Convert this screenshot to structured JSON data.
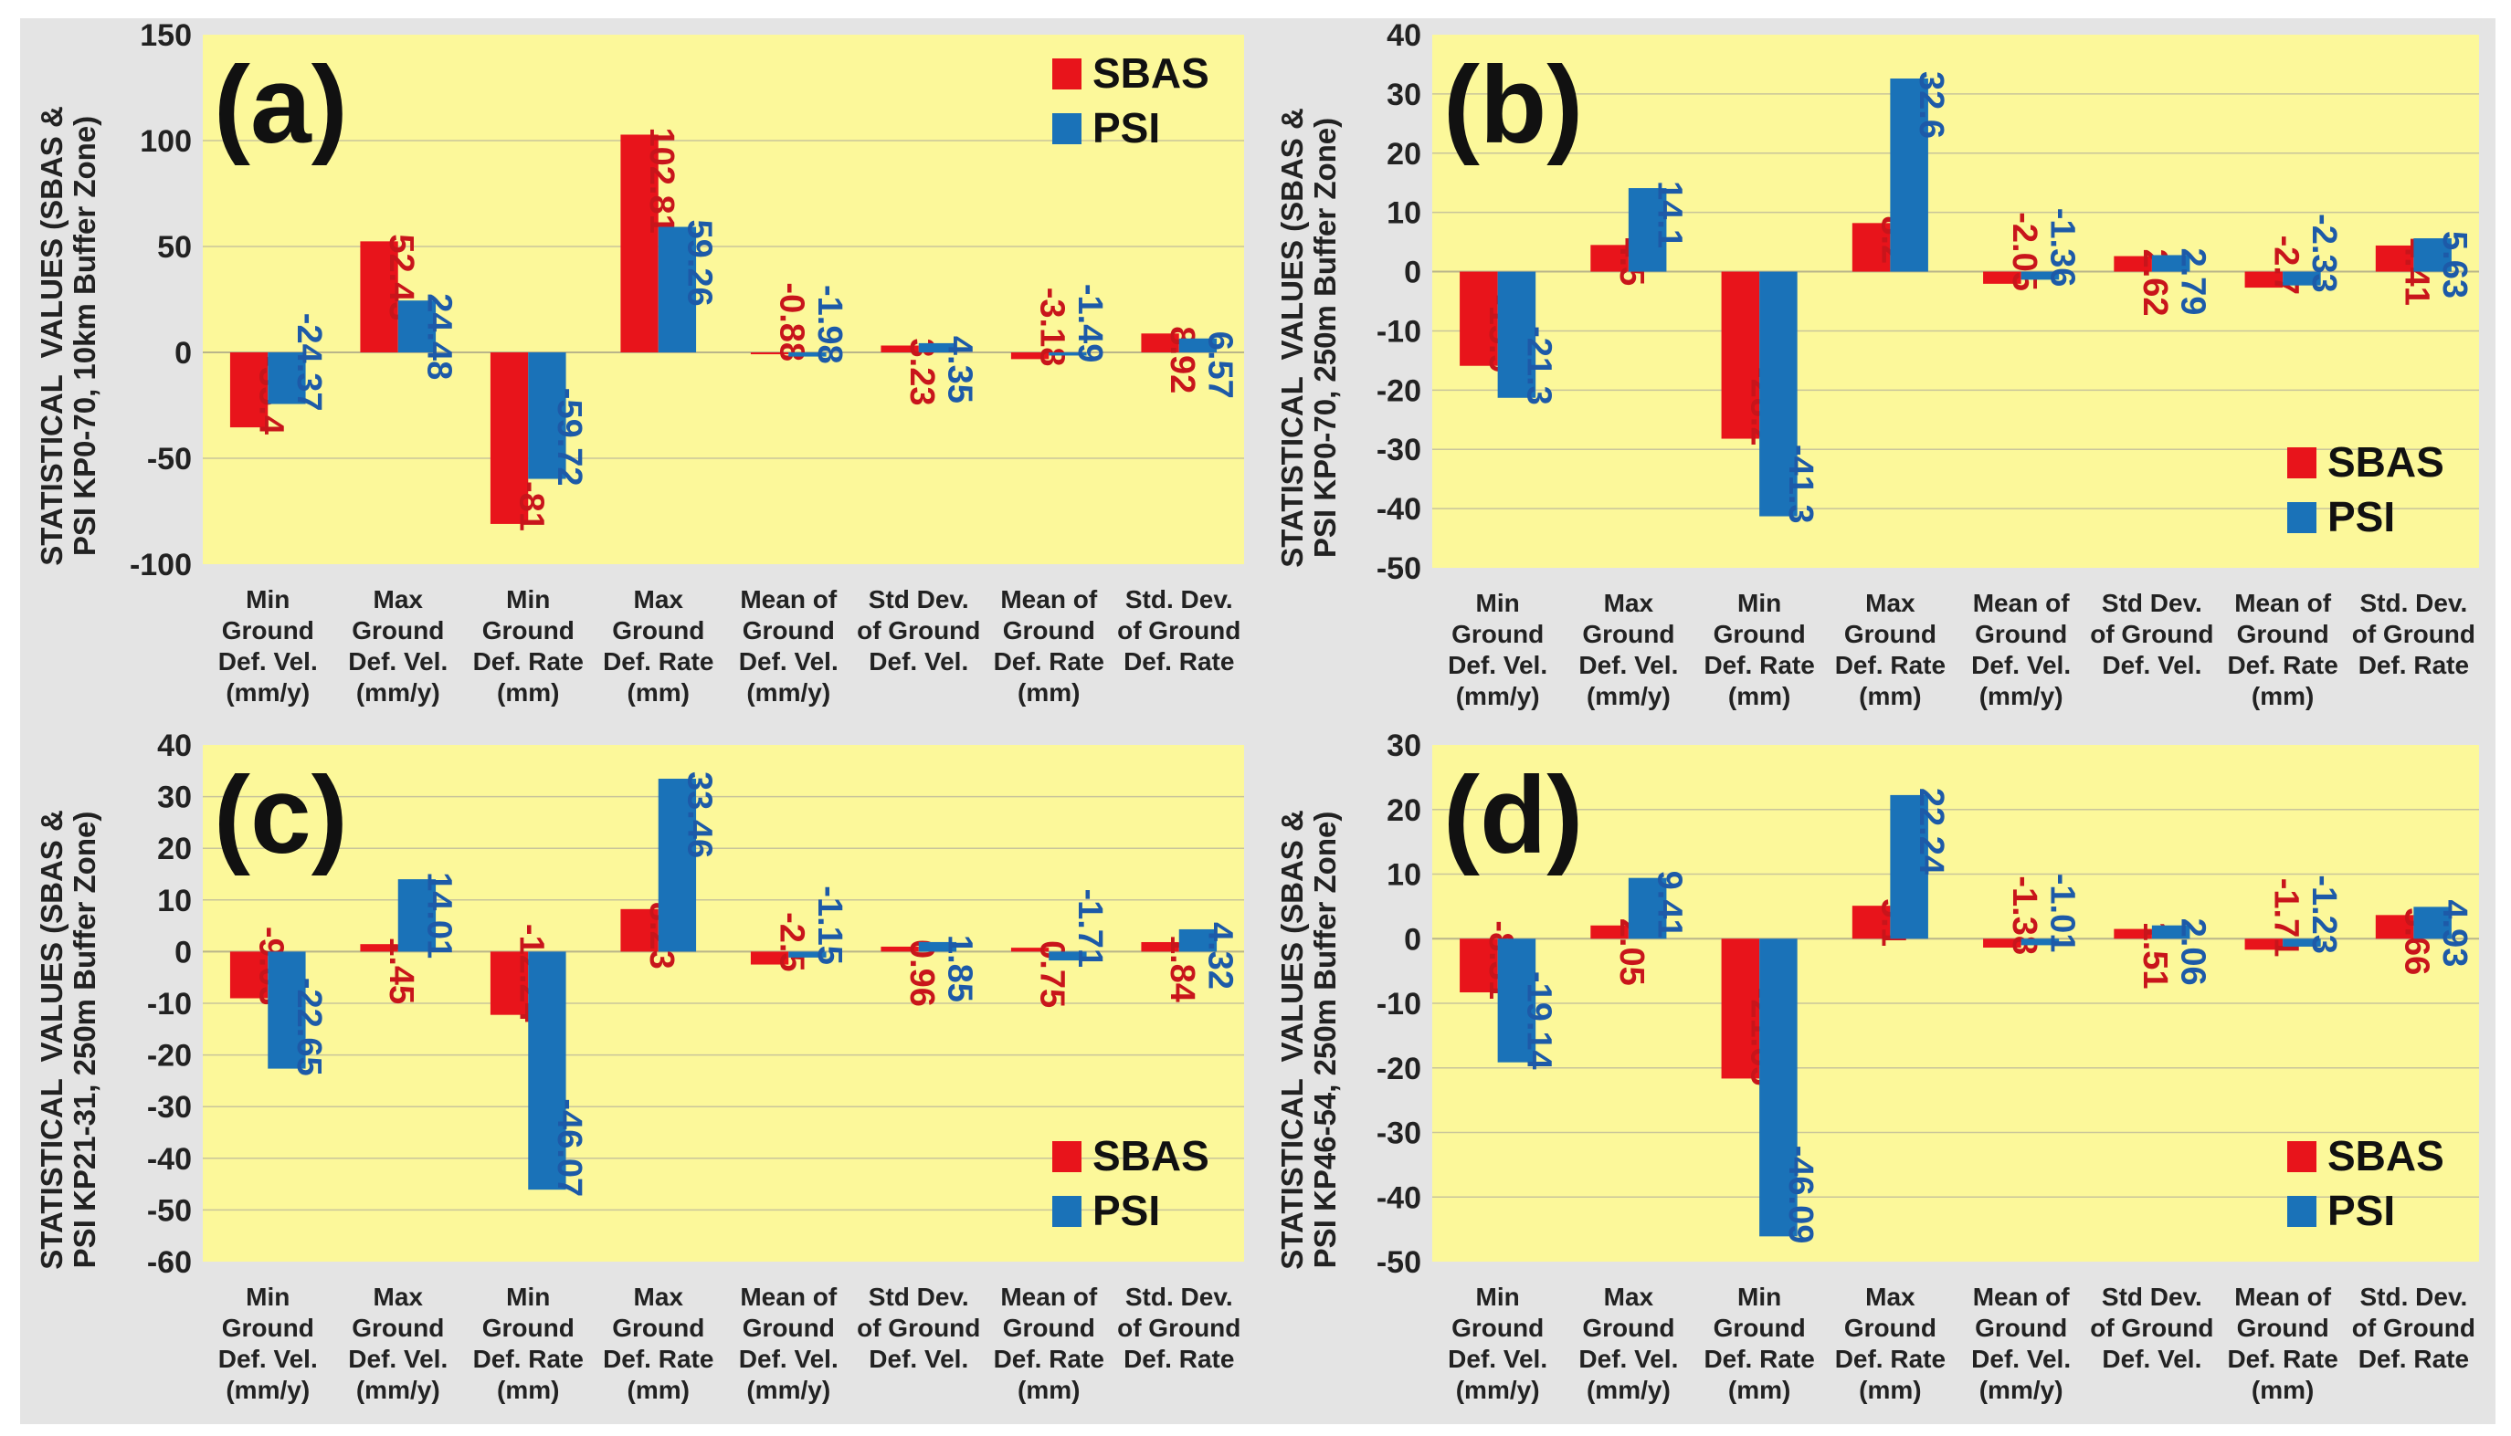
{
  "colors": {
    "sbas": "#e8141b",
    "psi": "#1a72b8",
    "plot_bg": "#fcf89a",
    "panel_bg": "#e4e4e4",
    "grid": "#c9c59a",
    "sbas_text": "#c8151b",
    "psi_text": "#1d5aa8",
    "axis_text": "#222222"
  },
  "legend": {
    "sbas": "SBAS",
    "psi": "PSI"
  },
  "chart_data": [
    {
      "type": "bar",
      "panel": "(a)",
      "ylabel_line1": "STATISTICAL  VALUES (SBAS &",
      "ylabel_line2": "PSI KP0-70, 10km Buffer Zone)",
      "ylim": [
        -100,
        150
      ],
      "ytick_step": 50,
      "legend_position": "top-right",
      "categories": [
        [
          "Min",
          "Ground",
          "Def. Vel.",
          "(mm/y)"
        ],
        [
          "Max",
          "Ground",
          "Def. Vel.",
          "(mm/y)"
        ],
        [
          "Min",
          "Ground",
          "Def. Rate",
          "(mm)"
        ],
        [
          "Max",
          "Ground",
          "Def. Rate",
          "(mm)"
        ],
        [
          "Mean of",
          "Ground",
          "Def. Vel.",
          "(mm/y)"
        ],
        [
          "Std Dev.",
          "of Ground",
          "Def. Vel."
        ],
        [
          "Mean of",
          "Ground",
          "Def. Rate",
          "(mm)"
        ],
        [
          "Std. Dev.",
          "of Ground",
          "Def. Rate"
        ]
      ],
      "series": [
        {
          "name": "SBAS",
          "values": [
            -35.4,
            52.43,
            -81,
            102.81,
            -0.88,
            3.23,
            -3.18,
            8.92
          ]
        },
        {
          "name": "PSI",
          "values": [
            -24.37,
            24.48,
            -59.72,
            59.26,
            -1.98,
            4.35,
            -1.49,
            6.57
          ]
        }
      ]
    },
    {
      "type": "bar",
      "panel": "(b)",
      "ylabel_line1": "STATISTICAL  VALUES (SBAS &",
      "ylabel_line2": "PSI KP0-70, 250m Buffer Zone)",
      "ylim": [
        -50,
        40
      ],
      "ytick_step": 10,
      "legend_position": "bottom-right",
      "categories": [
        [
          "Min",
          "Ground",
          "Def. Vel.",
          "(mm/y)"
        ],
        [
          "Max",
          "Ground",
          "Def. Vel.",
          "(mm/y)"
        ],
        [
          "Min",
          "Ground",
          "Def. Rate",
          "(mm)"
        ],
        [
          "Max",
          "Ground",
          "Def. Rate",
          "(mm)"
        ],
        [
          "Mean of",
          "Ground",
          "Def. Vel.",
          "(mm/y)"
        ],
        [
          "Std Dev.",
          "of Ground",
          "Def. Vel."
        ],
        [
          "Mean of",
          "Ground",
          "Def. Rate",
          "(mm)"
        ],
        [
          "Std. Dev.",
          "of Ground",
          "Def. Rate"
        ]
      ],
      "series": [
        {
          "name": "SBAS",
          "values": [
            -15.9,
            4.5,
            -28.2,
            8.2,
            -2.05,
            2.62,
            -2.7,
            4.41
          ]
        },
        {
          "name": "PSI",
          "values": [
            -21.3,
            14.1,
            -41.3,
            32.6,
            -1.36,
            2.79,
            -2.33,
            5.63
          ]
        }
      ]
    },
    {
      "type": "bar",
      "panel": "(c)",
      "ylabel_line1": "STATISTICAL  VALUES (SBAS &",
      "ylabel_line2": "PSI KP21-31, 250m Buffer Zone)",
      "ylim": [
        -60,
        40
      ],
      "ytick_step": 10,
      "legend_position": "bottom-right",
      "categories": [
        [
          "Min",
          "Ground",
          "Def. Vel.",
          "(mm/y)"
        ],
        [
          "Max",
          "Ground",
          "Def. Vel.",
          "(mm/y)"
        ],
        [
          "Min",
          "Ground",
          "Def. Rate",
          "(mm)"
        ],
        [
          "Max",
          "Ground",
          "Def. Rate",
          "(mm)"
        ],
        [
          "Mean of",
          "Ground",
          "Def. Vel.",
          "(mm/y)"
        ],
        [
          "Std Dev.",
          "of Ground",
          "Def. Vel."
        ],
        [
          "Mean of",
          "Ground",
          "Def. Rate",
          "(mm)"
        ],
        [
          "Std. Dev.",
          "of Ground",
          "Def. Rate"
        ]
      ],
      "series": [
        {
          "name": "SBAS",
          "values": [
            -9.03,
            1.45,
            -12.24,
            8.23,
            -2.5,
            0.96,
            0.75,
            1.84
          ]
        },
        {
          "name": "PSI",
          "values": [
            -22.65,
            14.01,
            -46.07,
            33.46,
            -1.15,
            1.85,
            -1.71,
            4.32
          ]
        }
      ]
    },
    {
      "type": "bar",
      "panel": "(d)",
      "ylabel_line1": "STATISTICAL  VALUES (SBAS &",
      "ylabel_line2": "PSI KP46-54, 250m Buffer Zone)",
      "ylim": [
        -50,
        30
      ],
      "ytick_step": 10,
      "legend_position": "bottom-right",
      "categories": [
        [
          "Min",
          "Ground",
          "Def. Vel.",
          "(mm/y)"
        ],
        [
          "Max",
          "Ground",
          "Def. Vel.",
          "(mm/y)"
        ],
        [
          "Min",
          "Ground",
          "Def. Rate",
          "(mm)"
        ],
        [
          "Max",
          "Ground",
          "Def. Rate",
          "(mm)"
        ],
        [
          "Mean of",
          "Ground",
          "Def. Vel.",
          "(mm/y)"
        ],
        [
          "Std Dev.",
          "of Ground",
          "Def. Vel."
        ],
        [
          "Mean of",
          "Ground",
          "Def. Rate",
          "(mm)"
        ],
        [
          "Std. Dev.",
          "of Ground",
          "Def. Rate"
        ]
      ],
      "series": [
        {
          "name": "SBAS",
          "values": [
            -8.31,
            2.05,
            -21.65,
            5.1,
            -1.38,
            1.51,
            -1.71,
            3.66
          ]
        },
        {
          "name": "PSI",
          "values": [
            -19.14,
            9.41,
            -46.09,
            22.24,
            -1.01,
            2.06,
            -1.23,
            4.93
          ]
        }
      ]
    }
  ]
}
